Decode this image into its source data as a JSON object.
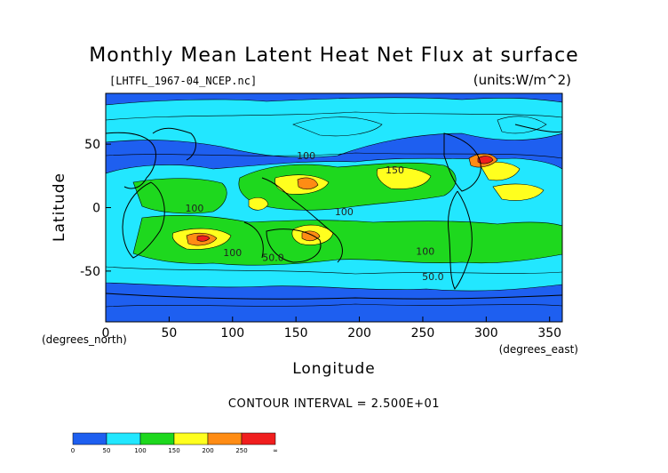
{
  "chart_data": {
    "type": "heatmap",
    "title": "Monthly Mean Latent Heat Net Flux at surface",
    "source_label": "[LHTFL_1967-04_NCEP.nc]",
    "units_label": "(units:W/m^2)",
    "xlabel": "Longitude",
    "ylabel": "Latitude",
    "x_units": "(degrees_east)",
    "y_units": "(degrees_north)",
    "xlim": [
      0,
      360
    ],
    "ylim": [
      -90,
      90
    ],
    "x_ticks": [
      0,
      50,
      100,
      150,
      200,
      250,
      300,
      350
    ],
    "y_ticks": [
      50,
      0,
      -50
    ],
    "contour_interval_text": "CONTOUR INTERVAL = 2.500E+01",
    "contour_labels": [
      {
        "text": "100",
        "lon": 158,
        "lat": 38
      },
      {
        "text": "150",
        "lon": 228,
        "lat": 27
      },
      {
        "text": "100",
        "lon": 188,
        "lat": -6
      },
      {
        "text": "100",
        "lon": 252,
        "lat": -37
      },
      {
        "text": "100",
        "lon": 70,
        "lat": -3
      },
      {
        "text": "100",
        "lon": 100,
        "lat": -38
      },
      {
        "text": "50.0",
        "lon": 132,
        "lat": -42
      },
      {
        "text": "50.0",
        "lon": 258,
        "lat": -57
      }
    ],
    "colorbar": {
      "levels": [
        0,
        50,
        100,
        150,
        200,
        250,
        "∞"
      ],
      "bins": [
        {
          "from": 0,
          "to": 50,
          "color": "#1e5ff0"
        },
        {
          "from": 50,
          "to": 100,
          "color": "#22e7ff"
        },
        {
          "from": 100,
          "to": 150,
          "color": "#1ed81e"
        },
        {
          "from": 150,
          "to": 200,
          "color": "#ffff1e"
        },
        {
          "from": 200,
          "to": 250,
          "color": "#ff8c14"
        },
        {
          "from": 250,
          "to": "∞",
          "color": "#f01e1e"
        }
      ]
    },
    "colors": {
      "background_field": "#1e5ff0",
      "band_50_100": "#22e7ff",
      "band_100_150": "#1ed81e",
      "band_150_200": "#ffff1e",
      "band_200_250": "#ff8c14",
      "band_250_plus": "#f01e1e",
      "land_contour": "#000000"
    }
  }
}
